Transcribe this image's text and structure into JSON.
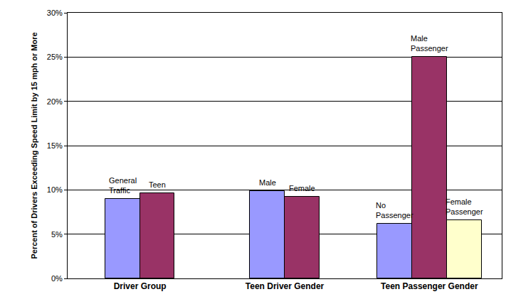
{
  "chart_data": {
    "type": "bar",
    "y_label": "Percent of Drivers Exceeding Speed Limit by 15 mph or More",
    "categories": [
      "Driver Group",
      "Teen Driver Gender",
      "Teen Passenger Gender"
    ],
    "bars": [
      {
        "category": "Driver Group",
        "label": "General Traffic",
        "value": 9.0,
        "color": "#9999ff"
      },
      {
        "category": "Driver Group",
        "label": "Teen",
        "value": 9.6,
        "color": "#993366"
      },
      {
        "category": "Teen Driver Gender",
        "label": "Male",
        "value": 9.9,
        "color": "#9999ff"
      },
      {
        "category": "Teen Driver Gender",
        "label": "Female",
        "value": 9.2,
        "color": "#993366"
      },
      {
        "category": "Teen Passenger Gender",
        "label": "No Passenger",
        "value": 6.2,
        "color": "#9999ff"
      },
      {
        "category": "Teen Passenger Gender",
        "label": "Male Passenger",
        "value": 25.0,
        "color": "#993366"
      },
      {
        "category": "Teen Passenger Gender",
        "label": "Female Passenger",
        "value": 6.6,
        "color": "#ffffcc"
      }
    ],
    "ylim": [
      0,
      30
    ],
    "yticks": [
      {
        "value": 0,
        "label": "0%"
      },
      {
        "value": 5,
        "label": "5%"
      },
      {
        "value": 10,
        "label": "10%"
      },
      {
        "value": 15,
        "label": "15%"
      },
      {
        "value": 20,
        "label": "20%"
      },
      {
        "value": 25,
        "label": "25%"
      },
      {
        "value": 30,
        "label": "30%"
      }
    ],
    "grid": true
  }
}
